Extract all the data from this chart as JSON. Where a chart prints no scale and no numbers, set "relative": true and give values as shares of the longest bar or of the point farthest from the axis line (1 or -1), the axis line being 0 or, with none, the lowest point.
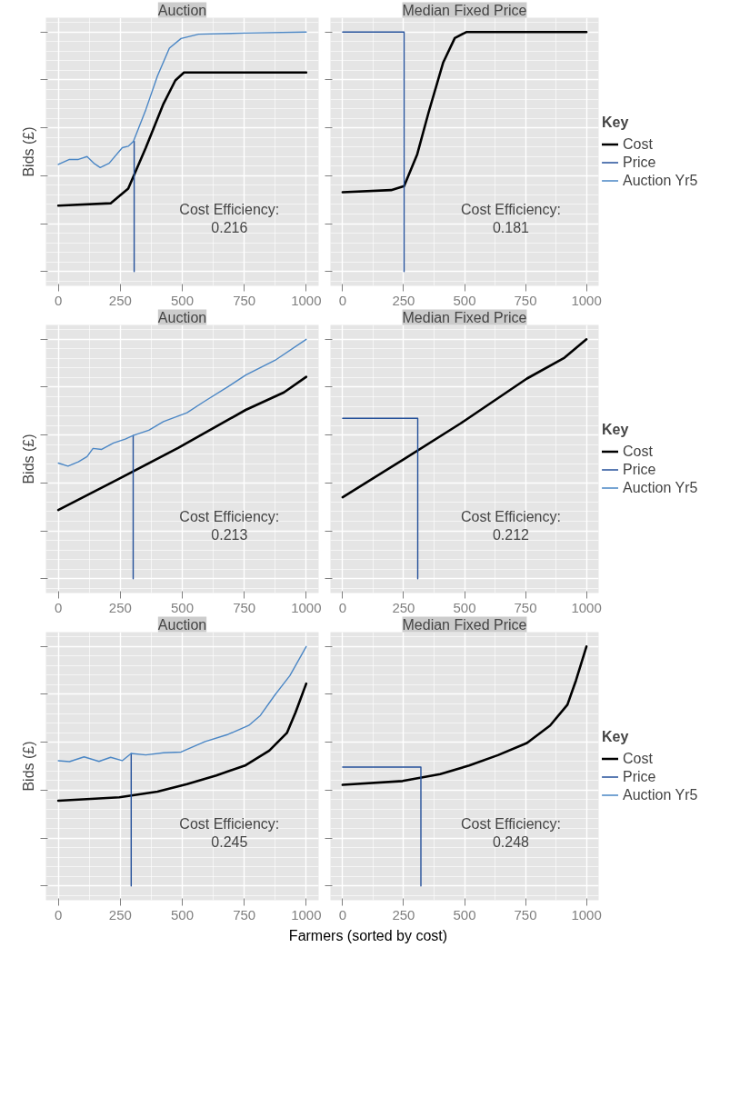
{
  "chart_data": [
    {
      "type": "line",
      "relative": true,
      "title": "Auction",
      "ylabel": "Bids (£)",
      "xlim": [
        -50,
        1050
      ],
      "xticks": [
        0,
        250,
        500,
        750,
        1000
      ],
      "grid": true,
      "annotations": [
        "Cost Efficiency:\n0.216"
      ],
      "series": [
        {
          "color": "#000000",
          "x": [
            0,
            211,
            282,
            353,
            424,
            472,
            507,
            1000
          ],
          "values": [
            0.275,
            0.285,
            0.346,
            0.517,
            0.7,
            0.798,
            0.831,
            0.831
          ]
        },
        {
          "color": "#24509a",
          "x": [
            306,
            306
          ],
          "values": [
            0,
            0.544
          ]
        },
        {
          "color": "#4a86c5",
          "x": [
            0,
            45,
            81,
            116,
            146,
            169,
            205,
            258,
            282,
            303,
            353,
            400,
            448,
            495,
            566,
            756,
            1000
          ],
          "values": [
            0.447,
            0.468,
            0.468,
            0.48,
            0.45,
            0.434,
            0.452,
            0.517,
            0.523,
            0.544,
            0.676,
            0.817,
            0.933,
            0.973,
            0.991,
            0.996,
            1.0
          ]
        }
      ]
    },
    {
      "type": "line",
      "relative": true,
      "title": "Median Fixed Price",
      "xlim": [
        -50,
        1050
      ],
      "xticks": [
        0,
        250,
        500,
        750,
        1000
      ],
      "grid": true,
      "legend": "right",
      "legend_title": "Key",
      "annotations": [
        "Cost Efficiency:\n0.181"
      ],
      "series": [
        {
          "name": "Cost",
          "color": "#000000",
          "x": [
            0,
            199,
            252,
            306,
            353,
            412,
            460,
            507,
            1000
          ],
          "values": [
            0.331,
            0.34,
            0.357,
            0.49,
            0.666,
            0.872,
            0.975,
            1.0,
            1.0
          ]
        },
        {
          "name": "Price",
          "color": "#24509a",
          "x": [
            0,
            252,
            252
          ],
          "values": [
            1.0,
            1.0,
            0
          ]
        },
        {
          "name": "Auction Yr5",
          "color": "#4a86c5",
          "values": [
            null
          ]
        }
      ]
    },
    {
      "type": "line",
      "relative": true,
      "title": "Auction",
      "ylabel": "Bids (£)",
      "xlim": [
        -50,
        1050
      ],
      "xticks": [
        0,
        250,
        500,
        750,
        1000
      ],
      "grid": true,
      "annotations": [
        "Cost Efficiency:\n0.213"
      ],
      "series": [
        {
          "color": "#000000",
          "x": [
            0,
            246,
            483,
            756,
            910,
            1000
          ],
          "values": [
            0.287,
            0.418,
            0.546,
            0.705,
            0.778,
            0.843
          ]
        },
        {
          "color": "#24509a",
          "x": [
            302,
            302
          ],
          "values": [
            0,
            0.598
          ]
        },
        {
          "color": "#4a86c5",
          "x": [
            0,
            39,
            81,
            116,
            140,
            175,
            223,
            270,
            302,
            365,
            424,
            519,
            590,
            685,
            756,
            874,
            1000
          ],
          "values": [
            0.483,
            0.47,
            0.488,
            0.51,
            0.544,
            0.54,
            0.567,
            0.583,
            0.598,
            0.62,
            0.656,
            0.693,
            0.741,
            0.802,
            0.851,
            0.912,
            1.0
          ]
        }
      ]
    },
    {
      "type": "line",
      "relative": true,
      "title": "Median Fixed Price",
      "xlim": [
        -50,
        1050
      ],
      "xticks": [
        0,
        250,
        500,
        750,
        1000
      ],
      "grid": true,
      "legend": "right",
      "legend_title": "Key",
      "annotations": [
        "Cost Efficiency:\n0.212"
      ],
      "series": [
        {
          "name": "Cost",
          "color": "#000000",
          "x": [
            0,
            246,
            483,
            756,
            910,
            1000
          ],
          "values": [
            0.34,
            0.496,
            0.648,
            0.836,
            0.923,
            1.0
          ]
        },
        {
          "name": "Price",
          "color": "#24509a",
          "x": [
            0,
            308,
            308
          ],
          "values": [
            0.67,
            0.67,
            0
          ]
        },
        {
          "name": "Auction Yr5",
          "color": "#4a86c5",
          "values": [
            null
          ]
        }
      ]
    },
    {
      "type": "line",
      "relative": true,
      "title": "Auction",
      "ylabel": "Bids (£)",
      "xlabel": "Farmers (sorted by cost)",
      "xlim": [
        -50,
        1050
      ],
      "xticks": [
        0,
        250,
        500,
        750,
        1000
      ],
      "grid": true,
      "annotations": [
        "Cost Efficiency:\n0.245"
      ],
      "series": [
        {
          "color": "#000000",
          "x": [
            0,
            246,
            400,
            519,
            637,
            756,
            851,
            922,
            957,
            1000
          ],
          "values": [
            0.356,
            0.37,
            0.394,
            0.425,
            0.461,
            0.504,
            0.565,
            0.639,
            0.725,
            0.845
          ]
        },
        {
          "color": "#24509a",
          "x": [
            294,
            294
          ],
          "values": [
            0,
            0.553
          ]
        },
        {
          "color": "#4a86c5",
          "x": [
            0,
            45,
            104,
            164,
            211,
            258,
            294,
            353,
            424,
            495,
            590,
            685,
            768,
            815,
            874,
            934,
            1000
          ],
          "values": [
            0.523,
            0.519,
            0.539,
            0.52,
            0.537,
            0.523,
            0.553,
            0.547,
            0.556,
            0.559,
            0.602,
            0.633,
            0.67,
            0.712,
            0.798,
            0.878,
            1.0
          ]
        }
      ]
    },
    {
      "type": "line",
      "relative": true,
      "title": "Median Fixed Price",
      "xlim": [
        -50,
        1050
      ],
      "xticks": [
        0,
        250,
        500,
        750,
        1000
      ],
      "grid": true,
      "legend": "right",
      "legend_title": "Key",
      "annotations": [
        "Cost Efficiency:\n0.248"
      ],
      "series": [
        {
          "name": "Cost",
          "color": "#000000",
          "x": [
            0,
            246,
            400,
            519,
            637,
            756,
            851,
            922,
            957,
            1000
          ],
          "values": [
            0.422,
            0.438,
            0.467,
            0.503,
            0.546,
            0.597,
            0.67,
            0.757,
            0.858,
            1.0
          ]
        },
        {
          "name": "Price",
          "color": "#24509a",
          "x": [
            0,
            321,
            321
          ],
          "values": [
            0.496,
            0.496,
            0
          ]
        },
        {
          "name": "Auction Yr5",
          "color": "#4a86c5",
          "values": [
            null
          ]
        }
      ]
    }
  ]
}
